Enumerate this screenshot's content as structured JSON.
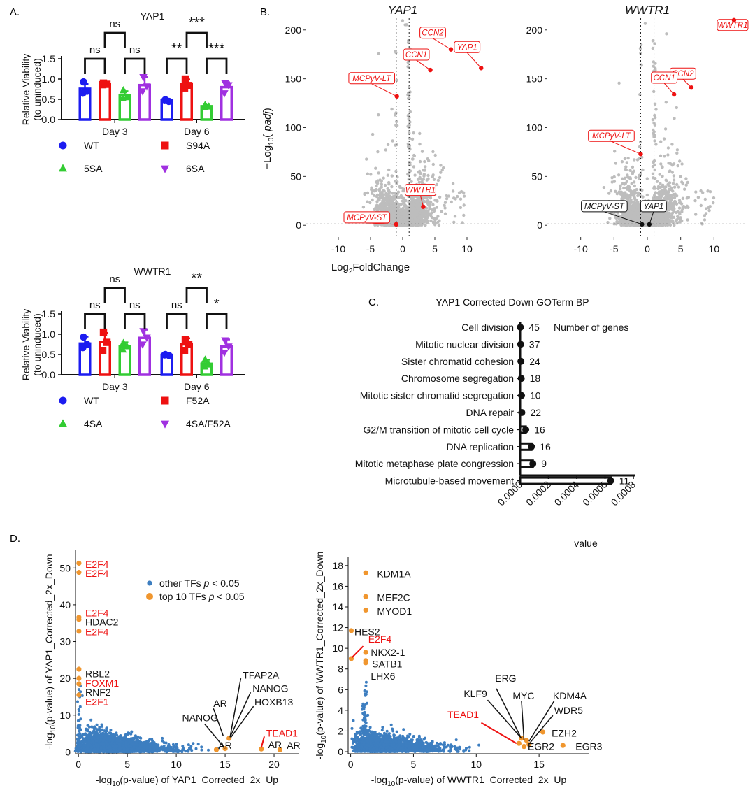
{
  "colors": {
    "blue": "#1c1cf0",
    "red": "#ee1111",
    "green": "#33cc33",
    "purple": "#a030e0",
    "grey": "#bdbdbd",
    "steel": "#3d7ec0",
    "orange": "#f0962e",
    "black": "#111111",
    "label_red": "#ee1111"
  },
  "panel_labels": {
    "a": "A.",
    "b": "B.",
    "c": "C.",
    "d": "D."
  },
  "chart_data": [
    {
      "id": "A1",
      "type": "bar",
      "title": "YAP1",
      "ylabel": [
        "Relative Viability",
        "(to uninduced)"
      ],
      "ylim": [
        0,
        1.5
      ],
      "yticks": [
        0.0,
        0.5,
        1.0,
        1.5
      ],
      "ytick_labels": [
        "0.0",
        "0.5",
        "1.0",
        "1.5"
      ],
      "groups": [
        "Day 3",
        "Day 6"
      ],
      "series": [
        {
          "name": "WT",
          "color": "#1c1cf0",
          "marker": "circle",
          "values": [
            0.76,
            0.47
          ],
          "errors": [
            0.12,
            0.03
          ],
          "points": [
            [
              0.93,
              0.7,
              0.65
            ],
            [
              0.49,
              0.45,
              0.47
            ]
          ]
        },
        {
          "name": "S94A",
          "color": "#ee1111",
          "marker": "square",
          "values": [
            0.88,
            0.87
          ],
          "errors": [
            0.03,
            0.12
          ],
          "points": [
            [
              0.9,
              0.87,
              0.86
            ],
            [
              1.0,
              0.84,
              0.78
            ]
          ]
        },
        {
          "name": "5SA",
          "color": "#33cc33",
          "marker": "triangle-up",
          "values": [
            0.6,
            0.33
          ],
          "errors": [
            0.1,
            0.03
          ],
          "points": [
            [
              0.72,
              0.55,
              0.52
            ],
            [
              0.36,
              0.32,
              0.31
            ]
          ]
        },
        {
          "name": "6SA",
          "color": "#a030e0",
          "marker": "triangle-down",
          "values": [
            0.85,
            0.8
          ],
          "errors": [
            0.2,
            0.12
          ],
          "points": [
            [
              1.05,
              0.82,
              0.7
            ],
            [
              0.9,
              0.85,
              0.65
            ]
          ]
        }
      ],
      "legend": [
        [
          "WT",
          "S94A"
        ],
        [
          "5SA",
          "6SA"
        ]
      ],
      "significance": [
        {
          "group": 0,
          "from": 0,
          "to": 1,
          "level": 1,
          "label": "ns"
        },
        {
          "group": 0,
          "from": 2,
          "to": 3,
          "level": 1,
          "label": "ns"
        },
        {
          "group": 0,
          "from": 1,
          "to": 2,
          "level": 2,
          "label": "ns"
        },
        {
          "group": 1,
          "from": 0,
          "to": 1,
          "level": 1,
          "label": "**"
        },
        {
          "group": 1,
          "from": 2,
          "to": 3,
          "level": 1,
          "label": "***"
        },
        {
          "group": 1,
          "from": 1,
          "to": 2,
          "level": 2,
          "label": "***"
        }
      ]
    },
    {
      "id": "A2",
      "type": "bar",
      "title": "WWTR1",
      "ylabel": [
        "Relative Viability",
        "(to uninduced)"
      ],
      "ylim": [
        0,
        1.5
      ],
      "yticks": [
        0.0,
        0.5,
        1.0,
        1.5
      ],
      "ytick_labels": [
        "0.0",
        "0.5",
        "1.0",
        "1.5"
      ],
      "groups": [
        "Day 3",
        "Day 6"
      ],
      "series": [
        {
          "name": "WT",
          "color": "#1c1cf0",
          "marker": "circle",
          "values": [
            0.77,
            0.49
          ],
          "errors": [
            0.17,
            0.02
          ],
          "points": [
            [
              0.93,
              0.75,
              0.67
            ],
            [
              0.5,
              0.48,
              0.49
            ]
          ]
        },
        {
          "name": "F52A",
          "color": "#ee1111",
          "marker": "square",
          "values": [
            0.81,
            0.75
          ],
          "errors": [
            0.22,
            0.15
          ],
          "points": [
            [
              1.05,
              0.8,
              0.6
            ],
            [
              0.87,
              0.75,
              0.6
            ]
          ]
        },
        {
          "name": "4SA",
          "color": "#33cc33",
          "marker": "triangle-up",
          "values": [
            0.7,
            0.27
          ],
          "errors": [
            0.1,
            0.1
          ],
          "points": [
            [
              0.78,
              0.7,
              0.62
            ],
            [
              0.37,
              0.25,
              0.2
            ]
          ]
        },
        {
          "name": "4SA/F52A",
          "color": "#a030e0",
          "marker": "triangle-down",
          "values": [
            0.91,
            0.7
          ],
          "errors": [
            0.2,
            0.17
          ],
          "points": [
            [
              1.08,
              0.92,
              0.75
            ],
            [
              0.85,
              0.7,
              0.55
            ]
          ]
        }
      ],
      "legend": [
        [
          "WT",
          "F52A"
        ],
        [
          "4SA",
          "4SA/F52A"
        ]
      ],
      "significance": [
        {
          "group": 0,
          "from": 0,
          "to": 1,
          "level": 1,
          "label": "ns"
        },
        {
          "group": 0,
          "from": 2,
          "to": 3,
          "level": 1,
          "label": "ns"
        },
        {
          "group": 0,
          "from": 1,
          "to": 2,
          "level": 2,
          "label": "ns"
        },
        {
          "group": 1,
          "from": 0,
          "to": 1,
          "level": 1,
          "label": "ns"
        },
        {
          "group": 1,
          "from": 2,
          "to": 3,
          "level": 1,
          "label": "*"
        },
        {
          "group": 1,
          "from": 1,
          "to": 2,
          "level": 2,
          "label": "**"
        }
      ]
    },
    {
      "id": "B1",
      "type": "scatter",
      "title": "YAP1",
      "xlim": [
        -15,
        15
      ],
      "ylim": [
        -12,
        212
      ],
      "xticks": [
        -10,
        -5,
        0,
        5,
        10
      ],
      "xtick_labels": [
        "-10",
        "-5",
        "0",
        "5",
        "10"
      ],
      "yticks": [
        0,
        50,
        100,
        150,
        200
      ],
      "ytick_labels": [
        "0",
        "50",
        "100",
        "150",
        "200"
      ],
      "ylabel_prefix": "−Log",
      "ylabel_sub": "10",
      "ylabel_open": "( ",
      "ylabel_var": "padj",
      "ylabel_close": ")",
      "vlines": [
        -1,
        1
      ],
      "hline": 1.3,
      "highlights": [
        {
          "label": "CCN2",
          "x": 7.5,
          "y": 180,
          "color": "red"
        },
        {
          "label": "CCN1",
          "x": 4.3,
          "y": 159,
          "color": "red"
        },
        {
          "label": "YAP1",
          "x": 12.2,
          "y": 161,
          "color": "red"
        },
        {
          "label": "MCPyV-LT",
          "x": -0.9,
          "y": 132,
          "color": "red"
        },
        {
          "label": "WWTR1",
          "x": 3.2,
          "y": 19,
          "color": "red"
        },
        {
          "label": "MCPyV-ST",
          "x": -1.0,
          "y": 1,
          "color": "red"
        }
      ]
    },
    {
      "id": "B2",
      "type": "scatter",
      "title": "WWTR1",
      "xlim": [
        -15,
        15
      ],
      "ylim": [
        -12,
        212
      ],
      "xticks": [
        -10,
        -5,
        0,
        5,
        10
      ],
      "xtick_labels": [
        "-10",
        "-5",
        "0",
        "5",
        "10"
      ],
      "yticks": [
        0,
        50,
        100,
        150,
        200
      ],
      "ytick_labels": [
        "0",
        "50",
        "100",
        "150",
        "200"
      ],
      "xlabel_main": "Log",
      "xlabel_sub": "2",
      "xlabel_rest": "FoldChange",
      "vlines": [
        -1,
        1
      ],
      "hline": 1.3,
      "highlights": [
        {
          "label": "WWTR1",
          "x": 13.0,
          "y": 210,
          "color": "red"
        },
        {
          "label": "CCN2",
          "x": 6.6,
          "y": 141,
          "color": "red"
        },
        {
          "label": "CCN1",
          "x": 4.0,
          "y": 134,
          "color": "red"
        },
        {
          "label": "MCPyV-LT",
          "x": -1.0,
          "y": 73,
          "color": "red"
        },
        {
          "label": "MCPyV-ST",
          "x": -0.8,
          "y": 1,
          "color": "black"
        },
        {
          "label": "YAP1",
          "x": 0.3,
          "y": 1,
          "color": "black"
        }
      ]
    },
    {
      "id": "C",
      "type": "bar",
      "orientation": "horizontal",
      "title": "YAP1 Corrected Down GOTerm BP",
      "xlabel": "value",
      "xlim": [
        0,
        0.0008
      ],
      "xticks": [
        0,
        0.0002,
        0.0004,
        0.0006,
        0.0008
      ],
      "xtick_labels": [
        "0.0000",
        "0.0002",
        "0.0004",
        "0.0006",
        "0.0008"
      ],
      "legend_title": "Number of genes",
      "categories": [
        "Cell division",
        "Mitotic nuclear division",
        "Sister chromatid cohesion",
        "Chromosome segregation",
        "Mitotic sister chromatid segregation",
        "DNA repair",
        "G2/M transition of mitotic cell cycle",
        "DNA replication",
        "Mitotic metaphase plate congression",
        "Microtubule-based movement"
      ],
      "values": [
        2e-06,
        4e-06,
        6e-06,
        8e-06,
        1e-05,
        1.2e-05,
        4e-05,
        8e-05,
        9e-05,
        0.00064
      ],
      "counts": [
        "45",
        "37",
        "24",
        "18",
        "10",
        "22",
        "16",
        "16",
        "9",
        "11"
      ]
    },
    {
      "id": "D1",
      "type": "scatter",
      "xlabel_a": "-log",
      "xlabel_sub": "10",
      "xlabel_b": "(p-value) of YAP1_Corrected_2x_Up",
      "ylabel_a": "-log",
      "ylabel_sub": "10",
      "ylabel_b": "(p-value) of YAP1_Corrected_2x_Down",
      "xlim": [
        -0.3,
        22.5
      ],
      "ylim": [
        -0.5,
        55
      ],
      "xticks": [
        0,
        5,
        10,
        15,
        20
      ],
      "xtick_labels": [
        "0",
        "5",
        "10",
        "15",
        "20"
      ],
      "yticks": [
        0,
        10,
        20,
        30,
        40,
        50
      ],
      "ytick_labels": [
        "0",
        "10",
        "20",
        "30",
        "40",
        "50"
      ],
      "legend": [
        {
          "label": "other TFs ",
          "p": "p",
          "suffix": " < 0.05",
          "color": "steel"
        },
        {
          "label": "top 10 TFs ",
          "p": "p",
          "suffix": " < 0.05",
          "color": "orange"
        }
      ],
      "highlights": [
        {
          "x": 0.05,
          "y": 51.3
        },
        {
          "x": 0.05,
          "y": 48.8
        },
        {
          "x": 0.05,
          "y": 36.6
        },
        {
          "x": 0.05,
          "y": 36.0
        },
        {
          "x": 0.05,
          "y": 32.8
        },
        {
          "x": 0.05,
          "y": 22.5
        },
        {
          "x": 0.05,
          "y": 20.0
        },
        {
          "x": 0.05,
          "y": 18.5
        },
        {
          "x": 0.05,
          "y": 15.5
        },
        {
          "x": 15.4,
          "y": 3.7
        },
        {
          "x": 15.0,
          "y": 0.9
        },
        {
          "x": 18.7,
          "y": 0.8
        },
        {
          "x": 20.6,
          "y": 0.6
        },
        {
          "x": 14.1,
          "y": 0.6
        }
      ],
      "labels": [
        {
          "text": "E2F4",
          "x": 0.7,
          "y": 51.0,
          "color": "red"
        },
        {
          "text": "E2F4",
          "x": 0.7,
          "y": 48.5,
          "color": "red"
        },
        {
          "text": "E2F4",
          "x": 0.7,
          "y": 37.8,
          "color": "red"
        },
        {
          "text": "HDAC2",
          "x": 0.7,
          "y": 35.3,
          "color": "black"
        },
        {
          "text": "E2F4",
          "x": 0.7,
          "y": 32.7,
          "color": "red"
        },
        {
          "text": "RBL2",
          "x": 0.7,
          "y": 21.3,
          "color": "black"
        },
        {
          "text": "FOXM1",
          "x": 0.7,
          "y": 18.7,
          "color": "red"
        },
        {
          "text": "RNF2",
          "x": 0.7,
          "y": 16.2,
          "color": "black"
        },
        {
          "text": "E2F1",
          "x": 0.7,
          "y": 13.7,
          "color": "red"
        },
        {
          "text": "TFAP2A",
          "x": 16.8,
          "y": 20.9,
          "color": "black"
        },
        {
          "text": "NANOG",
          "x": 17.8,
          "y": 17.3,
          "color": "black"
        },
        {
          "text": "AR",
          "x": 13.8,
          "y": 13.2,
          "color": "black"
        },
        {
          "text": "HOXB13",
          "x": 18.0,
          "y": 13.6,
          "color": "black"
        },
        {
          "text": "NANOG",
          "x": 10.6,
          "y": 9.3,
          "color": "black"
        },
        {
          "text": "TEAD1",
          "x": 19.2,
          "y": 5.1,
          "color": "red"
        },
        {
          "text": "AR",
          "x": 14.3,
          "y": 1.8,
          "color": "black"
        },
        {
          "text": "AR",
          "x": 19.4,
          "y": 2.0,
          "color": "black"
        },
        {
          "text": "AR",
          "x": 21.3,
          "y": 1.8,
          "color": "black"
        }
      ]
    },
    {
      "id": "D2",
      "type": "scatter",
      "xlabel_a": "-log",
      "xlabel_sub": "10",
      "xlabel_b": "(p-value) of WWTR1_Corrected_2x_Up",
      "ylabel_a": "-log",
      "ylabel_sub": "10",
      "ylabel_b": "(p-value) of WWTR1_Corrected_2x_Down",
      "xlim": [
        -0.2,
        19
      ],
      "ylim": [
        -0.2,
        18.8
      ],
      "xticks": [
        0,
        5,
        10,
        15
      ],
      "xtick_labels": [
        "0",
        "5",
        "10",
        "15"
      ],
      "yticks": [
        0,
        2,
        4,
        6,
        8,
        10,
        12,
        14,
        16,
        18
      ],
      "ytick_labels": [
        "0",
        "2",
        "4",
        "6",
        "8",
        "10",
        "12",
        "14",
        "16",
        "18"
      ],
      "highlights": [
        {
          "x": 1.2,
          "y": 17.3
        },
        {
          "x": 1.2,
          "y": 15.0
        },
        {
          "x": 1.2,
          "y": 13.7
        },
        {
          "x": 0.05,
          "y": 11.7
        },
        {
          "x": 1.2,
          "y": 9.6
        },
        {
          "x": 1.2,
          "y": 8.8
        },
        {
          "x": 1.2,
          "y": 8.6
        },
        {
          "x": 13.6,
          "y": 1.3
        },
        {
          "x": 14.0,
          "y": 1.1
        },
        {
          "x": 13.4,
          "y": 0.8
        },
        {
          "x": 14.2,
          "y": 0.7
        },
        {
          "x": 15.3,
          "y": 1.9
        },
        {
          "x": 16.9,
          "y": 0.6
        },
        {
          "x": 13.8,
          "y": 0.5
        },
        {
          "x": 0.05,
          "y": 9.0
        }
      ],
      "labels": [
        {
          "text": "KDM1A",
          "x": 2.1,
          "y": 17.2,
          "color": "black"
        },
        {
          "text": "MEF2C",
          "x": 2.1,
          "y": 14.9,
          "color": "black"
        },
        {
          "text": "MYOD1",
          "x": 2.1,
          "y": 13.6,
          "color": "black"
        },
        {
          "text": "HES2",
          "x": 0.3,
          "y": 11.6,
          "color": "black"
        },
        {
          "text": "E2F4",
          "x": 1.4,
          "y": 10.9,
          "color": "red"
        },
        {
          "text": "NKX2-1",
          "x": 1.6,
          "y": 9.6,
          "color": "black"
        },
        {
          "text": "SATB1",
          "x": 1.7,
          "y": 8.5,
          "color": "black"
        },
        {
          "text": "LHX6",
          "x": 1.6,
          "y": 7.3,
          "color": "black"
        },
        {
          "text": "ERG",
          "x": 11.5,
          "y": 7.1,
          "color": "black"
        },
        {
          "text": "KLF9",
          "x": 9.0,
          "y": 5.6,
          "color": "black"
        },
        {
          "text": "MYC",
          "x": 12.9,
          "y": 5.4,
          "color": "black"
        },
        {
          "text": "KDM4A",
          "x": 16.1,
          "y": 5.4,
          "color": "black"
        },
        {
          "text": "TEAD1",
          "x": 7.7,
          "y": 3.6,
          "color": "red"
        },
        {
          "text": "WDR5",
          "x": 16.2,
          "y": 4.0,
          "color": "black"
        },
        {
          "text": "EZH2",
          "x": 16.0,
          "y": 1.8,
          "color": "black"
        },
        {
          "text": "EGR2",
          "x": 14.1,
          "y": 0.5,
          "color": "black"
        },
        {
          "text": "EGR3",
          "x": 17.9,
          "y": 0.5,
          "color": "black"
        }
      ]
    }
  ]
}
